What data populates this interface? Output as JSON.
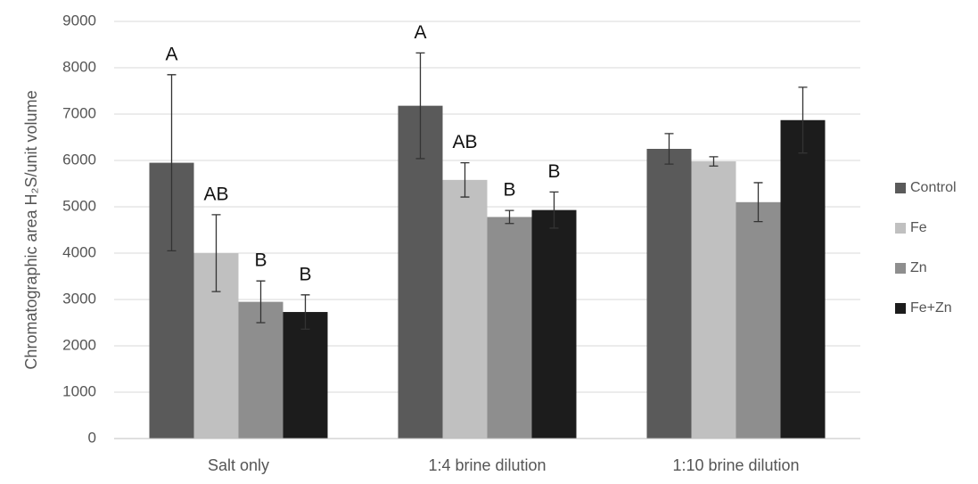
{
  "chart_data": {
    "type": "bar",
    "y_label": "Chromatographic area H₂S/unit volume",
    "categories": [
      "Salt only",
      "1:4 brine dilution",
      "1:10 brine dilution"
    ],
    "series": [
      {
        "name": "Control",
        "color": "#5a5a5a",
        "values": [
          5950,
          7180,
          6250
        ],
        "errors": [
          1900,
          1140,
          330
        ],
        "letters": [
          "A",
          "A",
          null
        ]
      },
      {
        "name": "Fe",
        "color": "#c0c0c0",
        "values": [
          4000,
          5580,
          5980
        ],
        "errors": [
          830,
          370,
          100
        ],
        "letters": [
          "AB",
          "AB",
          null
        ]
      },
      {
        "name": "Zn",
        "color": "#8e8e8e",
        "values": [
          2950,
          4780,
          5100
        ],
        "errors": [
          450,
          140,
          420
        ],
        "letters": [
          "B",
          "B",
          null
        ]
      },
      {
        "name": "Fe+Zn",
        "color": "#1c1c1c",
        "values": [
          2730,
          4930,
          6870
        ],
        "errors": [
          370,
          390,
          710
        ],
        "letters": [
          "B",
          "B",
          null
        ]
      }
    ],
    "ylim": [
      0,
      9000
    ],
    "yticks": [
      0,
      1000,
      2000,
      3000,
      4000,
      5000,
      6000,
      7000,
      8000,
      9000
    ],
    "grid": true,
    "legend": "right"
  }
}
